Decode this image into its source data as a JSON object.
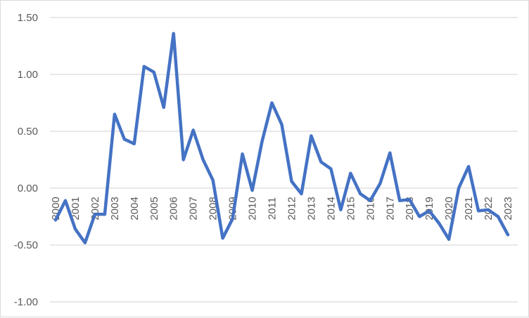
{
  "chart_data": {
    "type": "line",
    "title": "",
    "xlabel": "",
    "ylabel": "",
    "ylim": [
      -1.0,
      1.5
    ],
    "y_ticks": [
      "-1.00",
      "-0.50",
      "0.00",
      "0.50",
      "1.00",
      "1.50"
    ],
    "y_tick_values": [
      -1.0,
      -0.5,
      0.0,
      0.5,
      1.0,
      1.5
    ],
    "x_tick_labels": [
      "2000",
      "2001",
      "2002",
      "2003",
      "2004",
      "2005",
      "2006",
      "2007",
      "2008",
      "2009",
      "2010",
      "2011",
      "2012",
      "2013",
      "2014",
      "2015",
      "2016",
      "2017",
      "2018",
      "2019",
      "2020",
      "2021",
      "2022",
      "2023"
    ],
    "grid": "horizontal",
    "line_color": "#4472C4",
    "x": [
      2000,
      2000.5,
      2001,
      2001.5,
      2002,
      2002.5,
      2003,
      2003.5,
      2004,
      2004.5,
      2005,
      2005.5,
      2006,
      2006.5,
      2007,
      2007.5,
      2008,
      2008.5,
      2009,
      2009.5,
      2010,
      2010.5,
      2011,
      2011.5,
      2012,
      2012.5,
      2013,
      2013.5,
      2014,
      2014.5,
      2015,
      2015.5,
      2016,
      2016.5,
      2017,
      2017.5,
      2018,
      2018.5,
      2019,
      2019.5,
      2020,
      2020.5,
      2021,
      2021.5,
      2022,
      2022.5,
      2023
    ],
    "values": [
      -0.28,
      -0.11,
      -0.36,
      -0.48,
      -0.23,
      -0.23,
      0.65,
      0.43,
      0.39,
      1.07,
      1.02,
      0.71,
      1.36,
      0.25,
      0.51,
      0.25,
      0.07,
      -0.44,
      -0.27,
      0.3,
      -0.02,
      0.41,
      0.75,
      0.56,
      0.06,
      -0.05,
      0.46,
      0.23,
      0.17,
      -0.19,
      0.13,
      -0.05,
      -0.11,
      0.04,
      0.31,
      -0.11,
      -0.1,
      -0.25,
      -0.2,
      -0.31,
      -0.45,
      0.0,
      0.19,
      -0.2,
      -0.19,
      -0.25,
      -0.41
    ]
  }
}
